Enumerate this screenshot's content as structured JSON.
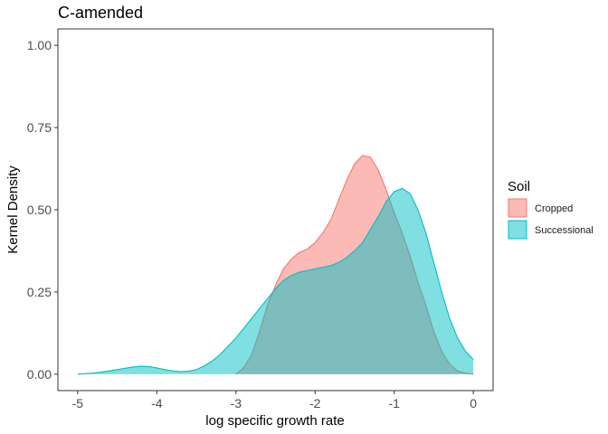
{
  "chart_data": {
    "type": "area",
    "title": "C-amended",
    "xlabel": "log specific growth rate",
    "ylabel": "Kernel Density",
    "xlim": [
      -5.25,
      0.25
    ],
    "ylim": [
      -0.05,
      1.05
    ],
    "x_ticks": [
      -5,
      -4,
      -3,
      -2,
      -1,
      0
    ],
    "x_tick_labels": [
      "-5",
      "-4",
      "-3",
      "-2",
      "-1",
      "0"
    ],
    "y_ticks": [
      0,
      0.25,
      0.5,
      0.75,
      1.0
    ],
    "y_tick_labels": [
      "0.00",
      "0.25",
      "0.50",
      "0.75",
      "1.00"
    ],
    "grid": false,
    "legend": {
      "title": "Soil",
      "position": "right"
    },
    "series": [
      {
        "name": "Cropped",
        "fill": "#F8766D",
        "stroke": "#F8766D",
        "x": [
          -3.0,
          -2.9,
          -2.8,
          -2.7,
          -2.6,
          -2.5,
          -2.4,
          -2.3,
          -2.2,
          -2.1,
          -2.0,
          -1.9,
          -1.8,
          -1.7,
          -1.6,
          -1.5,
          -1.4,
          -1.3,
          -1.2,
          -1.1,
          -1.0,
          -0.9,
          -0.8,
          -0.7,
          -0.6,
          -0.5,
          -0.4,
          -0.3,
          -0.2,
          -0.1,
          0.0
        ],
        "y": [
          0.0,
          0.02,
          0.06,
          0.13,
          0.21,
          0.27,
          0.32,
          0.35,
          0.37,
          0.38,
          0.4,
          0.43,
          0.47,
          0.53,
          0.59,
          0.64,
          0.665,
          0.66,
          0.62,
          0.56,
          0.49,
          0.43,
          0.36,
          0.28,
          0.21,
          0.13,
          0.07,
          0.03,
          0.01,
          0.003,
          0.0
        ]
      },
      {
        "name": "Successional",
        "fill": "#00BFC4",
        "stroke": "#00BFC4",
        "x": [
          -5.0,
          -4.8,
          -4.6,
          -4.4,
          -4.3,
          -4.2,
          -4.1,
          -4.0,
          -3.9,
          -3.8,
          -3.7,
          -3.6,
          -3.5,
          -3.4,
          -3.3,
          -3.2,
          -3.1,
          -3.0,
          -2.9,
          -2.8,
          -2.7,
          -2.6,
          -2.5,
          -2.4,
          -2.3,
          -2.2,
          -2.1,
          -2.0,
          -1.9,
          -1.8,
          -1.7,
          -1.6,
          -1.5,
          -1.4,
          -1.3,
          -1.2,
          -1.1,
          -1.0,
          -0.9,
          -0.8,
          -0.7,
          -0.6,
          -0.5,
          -0.4,
          -0.3,
          -0.2,
          -0.1,
          0.0
        ],
        "y": [
          0.0,
          0.003,
          0.01,
          0.018,
          0.022,
          0.024,
          0.023,
          0.019,
          0.014,
          0.01,
          0.008,
          0.009,
          0.014,
          0.025,
          0.04,
          0.06,
          0.085,
          0.11,
          0.14,
          0.17,
          0.2,
          0.23,
          0.26,
          0.285,
          0.3,
          0.31,
          0.315,
          0.32,
          0.325,
          0.33,
          0.34,
          0.355,
          0.375,
          0.4,
          0.44,
          0.48,
          0.525,
          0.555,
          0.565,
          0.55,
          0.5,
          0.43,
          0.34,
          0.25,
          0.17,
          0.11,
          0.07,
          0.045
        ]
      }
    ]
  }
}
